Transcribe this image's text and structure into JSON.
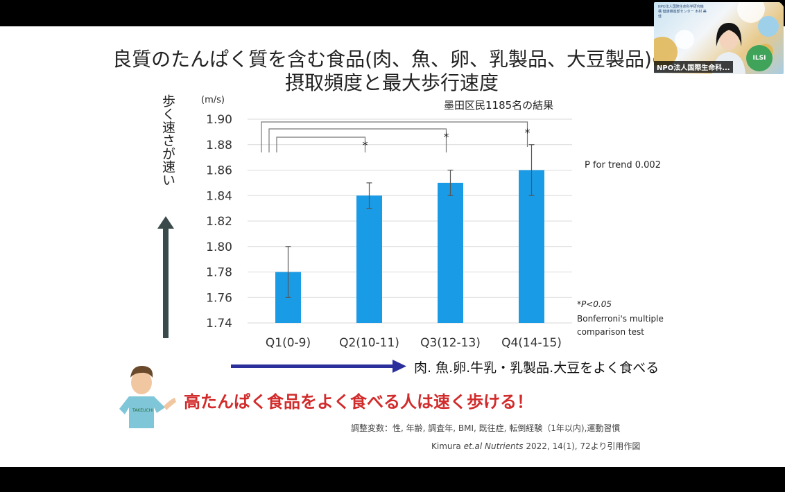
{
  "slide": {
    "title_line1": "良質のたんぱく質を含む食品(肉、魚、卵、乳製品、大豆製品)の",
    "title_line2": "摂取頻度と最大歩行速度",
    "vertical_label": "歩く速さが速い",
    "arrow_caption": "肉. 魚.卵.牛乳・乳製品.大豆をよく食べる",
    "headline": "高たんぱく食品をよく食べる人は速く歩ける！",
    "adjustment": "調整変数：性, 年齢, 調査年, BMI, 既往症, 転倒経験（1年以内),運動習慣",
    "citation_author": "Kimura ",
    "citation_journal": "et.al Nutrients",
    "citation_rest": " 2022, 14(1), 72より引用作図",
    "shirt_text": "TAKEUCHI",
    "p_trend": "P for trend   0.002",
    "sig_note_line1": "*P<0.05",
    "sig_note_line2": "Bonferroni's multiple",
    "sig_note_line3": "comparison test"
  },
  "chart_data": {
    "type": "bar",
    "title": "墨田区民1185名の結果",
    "unit_label": "(m/s)",
    "categories": [
      "Q1(0-9)",
      "Q2(10-11)",
      "Q3(12-13)",
      "Q4(14-15)"
    ],
    "values": [
      1.78,
      1.84,
      1.85,
      1.86
    ],
    "error_low": [
      1.76,
      1.83,
      1.84,
      1.84
    ],
    "error_high": [
      1.8,
      1.85,
      1.86,
      1.88
    ],
    "ylim": [
      1.74,
      1.9
    ],
    "yticks": [
      "1.74",
      "1.76",
      "1.78",
      "1.80",
      "1.82",
      "1.84",
      "1.86",
      "1.88",
      "1.90"
    ],
    "grid": true,
    "bar_color": "#1a9be6",
    "significance": [
      {
        "from": "Q1(0-9)",
        "to": "Q2(10-11)",
        "mark": "*"
      },
      {
        "from": "Q1(0-9)",
        "to": "Q3(12-13)",
        "mark": "*"
      },
      {
        "from": "Q1(0-9)",
        "to": "Q4(14-15)",
        "mark": "*"
      }
    ]
  },
  "pip": {
    "label": "NPO法人国際生命科...",
    "info": "NPO法人国際生命科学研究機構 健康推進部センター 木村 美佳",
    "logo": "ILSI"
  }
}
